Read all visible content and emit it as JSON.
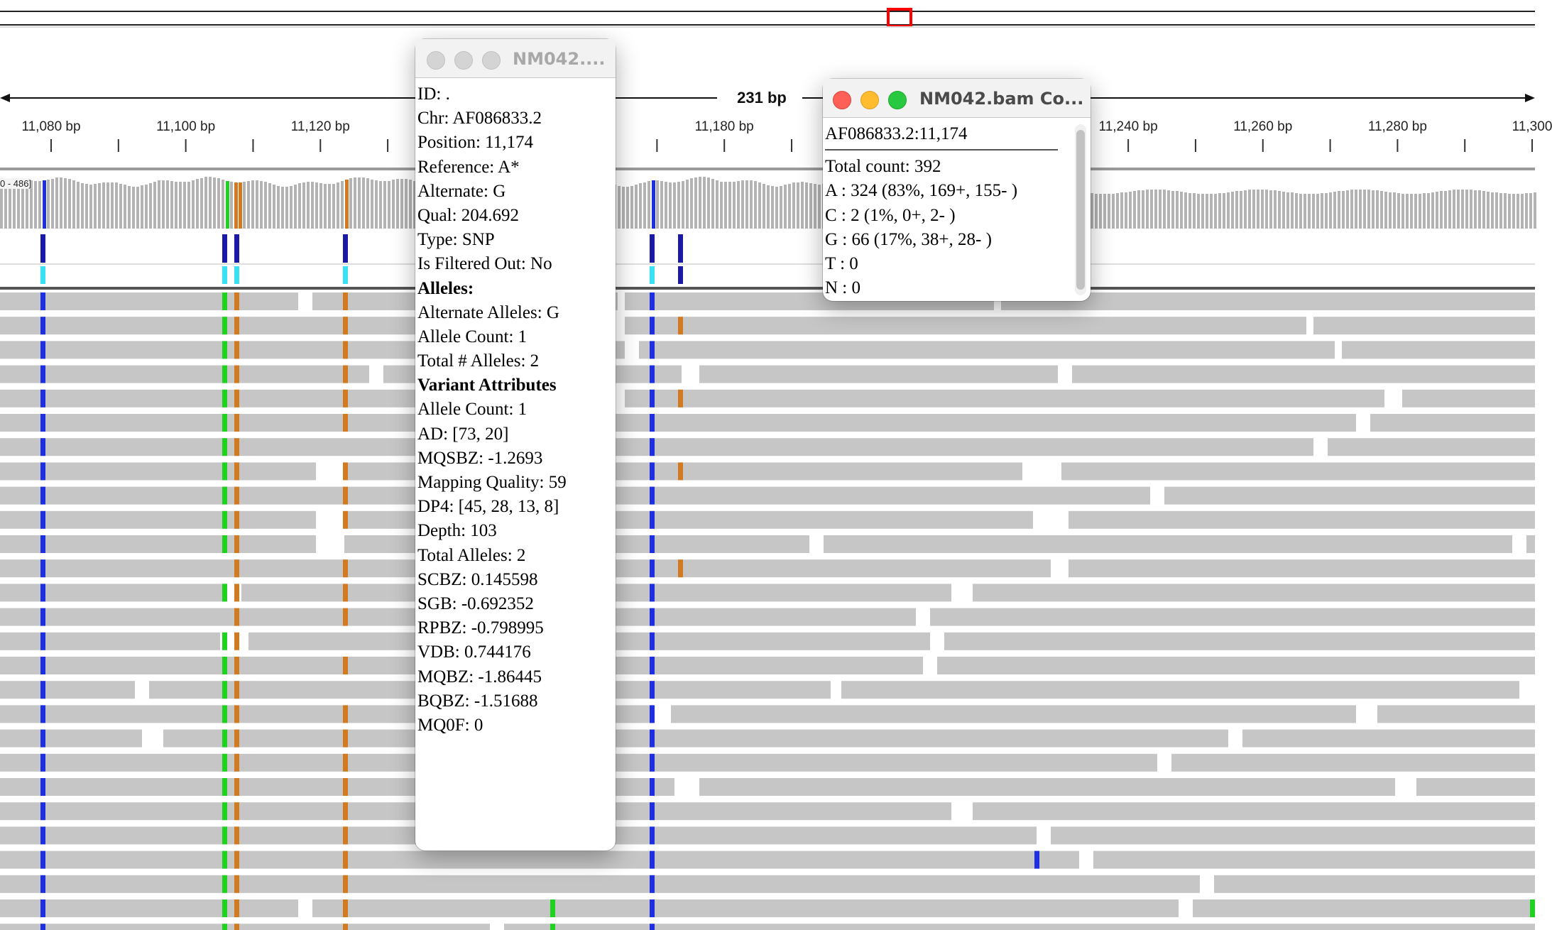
{
  "ruler": {
    "span_label": "231 bp",
    "coverage_range_label": "0 - 486]",
    "ticks": [
      {
        "label": "11,080 bp",
        "pos": 11080
      },
      {
        "label": "11,100 bp",
        "pos": 11100
      },
      {
        "label": "11,120 bp",
        "pos": 11120
      },
      {
        "label": "11,180 bp",
        "pos": 11180
      },
      {
        "label": "11,240 bp",
        "pos": 11240
      },
      {
        "label": "11,260 bp",
        "pos": 11260
      },
      {
        "label": "11,280 bp",
        "pos": 11280
      },
      {
        "label": "11,300",
        "pos": 11300
      }
    ]
  },
  "colors": {
    "read": "#c6c6c6",
    "coverage": "#b3b3b3",
    "A": "#1fd21f",
    "C": "#1d2fe0",
    "G": "#d17a1f",
    "variant_dark": "#1a1aa6",
    "variant_light": "#37e2f5",
    "red_box": "#ff0000"
  },
  "variant_popup": {
    "title": "NM042....",
    "lines": [
      {
        "text": "ID: .",
        "bold": false
      },
      {
        "text": "Chr: AF086833.2",
        "bold": false
      },
      {
        "text": "Position: 11,174",
        "bold": false
      },
      {
        "text": "Reference: A*",
        "bold": false
      },
      {
        "text": "Alternate: G",
        "bold": false
      },
      {
        "text": "Qual: 204.692",
        "bold": false
      },
      {
        "text": "Type: SNP",
        "bold": false
      },
      {
        "text": "Is Filtered Out: No",
        "bold": false
      },
      {
        "text": "Alleles:",
        "bold": true
      },
      {
        "text": "Alternate Alleles: G",
        "bold": false
      },
      {
        "text": "Allele Count: 1",
        "bold": false
      },
      {
        "text": "Total # Alleles: 2",
        "bold": false
      },
      {
        "text": "Variant Attributes",
        "bold": true
      },
      {
        "text": "Allele Count: 1",
        "bold": false
      },
      {
        "text": "AD: [73, 20]",
        "bold": false
      },
      {
        "text": "MQSBZ: -1.2693",
        "bold": false
      },
      {
        "text": "Mapping Quality: 59",
        "bold": false
      },
      {
        "text": "DP4: [45, 28, 13, 8]",
        "bold": false
      },
      {
        "text": "Depth: 103",
        "bold": false
      },
      {
        "text": "Total Alleles: 2",
        "bold": false
      },
      {
        "text": "SCBZ: 0.145598",
        "bold": false
      },
      {
        "text": "SGB: -0.692352",
        "bold": false
      },
      {
        "text": "RPBZ: -0.798995",
        "bold": false
      },
      {
        "text": "VDB: 0.744176",
        "bold": false
      },
      {
        "text": "MQBZ: -1.86445",
        "bold": false
      },
      {
        "text": "BQBZ: -1.51688",
        "bold": false
      },
      {
        "text": "MQ0F: 0",
        "bold": false
      }
    ]
  },
  "count_popup": {
    "title": "NM042.bam Co...",
    "header": "AF086833.2:11,174",
    "lines": [
      "Total count: 392",
      "A : 324 (83%, 169+, 155- )",
      "C : 2 (1%, 0+, 2- )",
      "G : 66 (17%, 38+, 28- )",
      "T : 0",
      "N : 0"
    ]
  }
}
